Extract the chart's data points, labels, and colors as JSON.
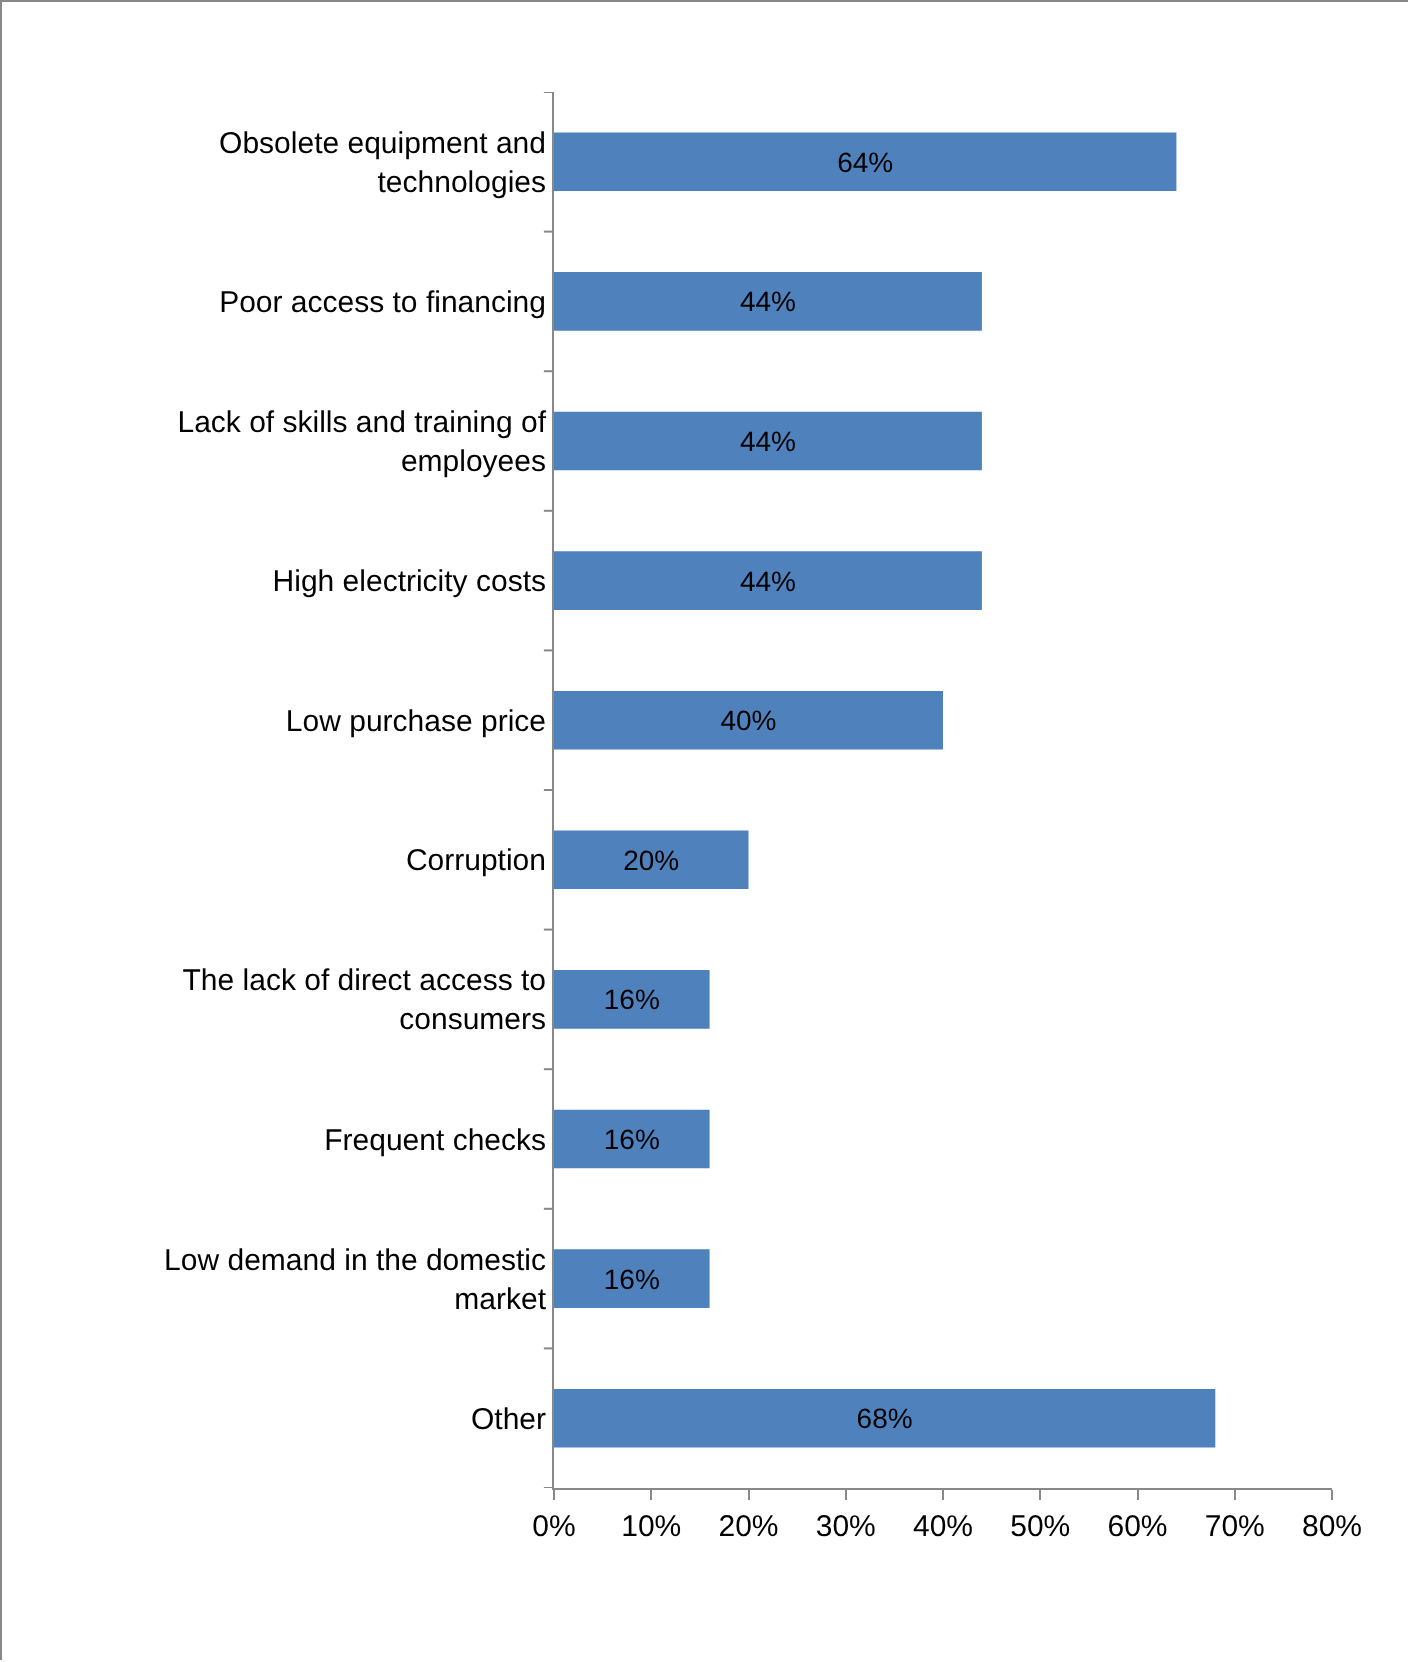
{
  "chart_data": {
    "type": "bar",
    "orientation": "horizontal",
    "categories": [
      "Obsolete equipment and technologies",
      "Poor access to financing",
      "Lack of skills and training of employees",
      "High electricity costs",
      "Low purchase price",
      "Corruption",
      "The lack of direct access to consumers",
      "Frequent checks",
      "Low demand in the domestic market",
      "Other"
    ],
    "values": [
      64,
      44,
      44,
      44,
      40,
      20,
      16,
      16,
      16,
      68
    ],
    "value_labels": [
      "64%",
      "44%",
      "44%",
      "44%",
      "40%",
      "20%",
      "16%",
      "16%",
      "16%",
      "68%"
    ],
    "color": "#4f81bd",
    "xlim": [
      0,
      80
    ],
    "xticks": [
      {
        "value": 0,
        "label": "0%"
      },
      {
        "value": 10,
        "label": "10%"
      },
      {
        "value": 20,
        "label": "20%"
      },
      {
        "value": 30,
        "label": "30%"
      },
      {
        "value": 40,
        "label": "40%"
      },
      {
        "value": 50,
        "label": "50%"
      },
      {
        "value": 60,
        "label": "60%"
      },
      {
        "value": 70,
        "label": "70%"
      },
      {
        "value": 80,
        "label": "80%"
      }
    ],
    "grid": false
  }
}
